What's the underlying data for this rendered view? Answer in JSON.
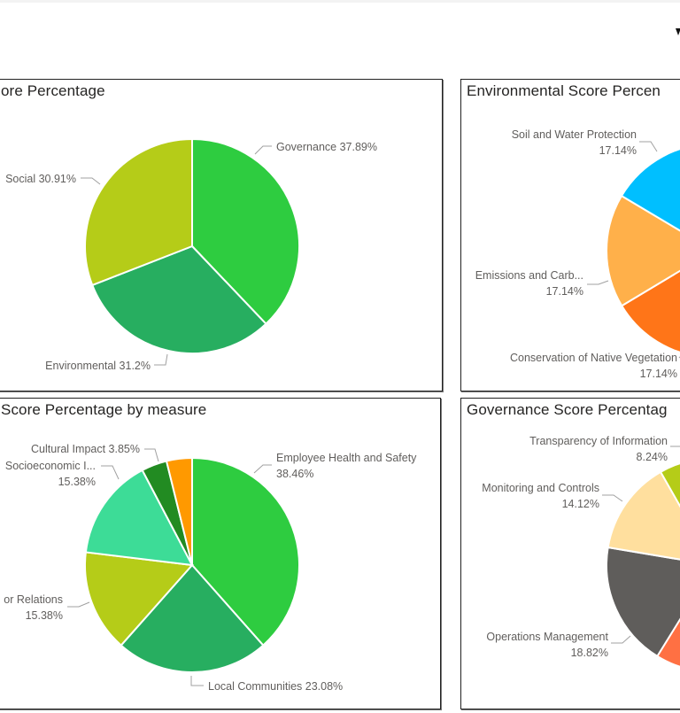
{
  "header": {
    "glyph": "clipped-logo"
  },
  "panels": {
    "esg": {
      "title": "ore Percentage"
    },
    "environmental": {
      "title": "Environmental Score Percen"
    },
    "social": {
      "title": "Score Percentage by measure"
    },
    "governance": {
      "title": "Governance Score Percentag"
    }
  },
  "chart_data": [
    {
      "type": "pie",
      "title": "ore Percentage",
      "categories": [
        "Governance",
        "Environmental",
        "Social"
      ],
      "values": [
        37.89,
        31.2,
        30.91
      ],
      "colors": [
        "#2ECC40",
        "#27AE60",
        "#B5CC18"
      ],
      "labels": [
        "Governance 37.89%",
        "Environmental 31.2%",
        "Social 30.91%"
      ]
    },
    {
      "type": "pie",
      "title": "Environmental Score Percen",
      "categories": [
        "Conservation of Native Vegetation",
        "Emissions and Carb...",
        "Soil and Water Protection"
      ],
      "values": [
        17.14,
        17.14,
        17.14
      ],
      "start_percent": 49.26,
      "colors": [
        "#FF7518",
        "#FFB04A",
        "#00BFFF"
      ],
      "labels": [
        [
          "Conservation of Native Vegetation",
          "17.14%"
        ],
        [
          "Emissions and Carb...",
          "17.14%"
        ],
        [
          "Soil and Water Protection",
          "17.14%"
        ]
      ]
    },
    {
      "type": "pie",
      "title": "Score Percentage by measure",
      "categories": [
        "Employee Health and Safety",
        "Local Communities",
        "or Relations",
        "Socioeconomic I...",
        "Cultural Impact",
        ""
      ],
      "values": [
        38.46,
        23.08,
        15.38,
        15.38,
        3.85,
        3.85
      ],
      "colors": [
        "#2ECC40",
        "#27AE60",
        "#B5CC18",
        "#3DDC97",
        "#228B22",
        "#FF9900"
      ],
      "labels": [
        [
          "Employee Health and Safety",
          "38.46%"
        ],
        [
          "Local Communities 23.08%"
        ],
        [
          "or Relations",
          "15.38%"
        ],
        [
          "Socioeconomic I...",
          "15.38%"
        ],
        [
          "Cultural Impact 3.85%"
        ]
      ]
    },
    {
      "type": "pie",
      "title": "Governance Score Percentag",
      "categories": [
        "Operations Management",
        "Monitoring and Controls",
        "Transparency of Information"
      ],
      "values": [
        18.82,
        14.12,
        8.24
      ],
      "start_percent": 58.82,
      "partial_slice_before": {
        "color": "#FF7043"
      },
      "colors": [
        "#5F5D5B",
        "#FFDF9E",
        "#B5CC18"
      ],
      "labels": [
        [
          "Operations Management",
          "18.82%"
        ],
        [
          "Monitoring and Controls",
          "14.12%"
        ],
        [
          "Transparency of Information",
          "8.24%"
        ]
      ]
    }
  ]
}
